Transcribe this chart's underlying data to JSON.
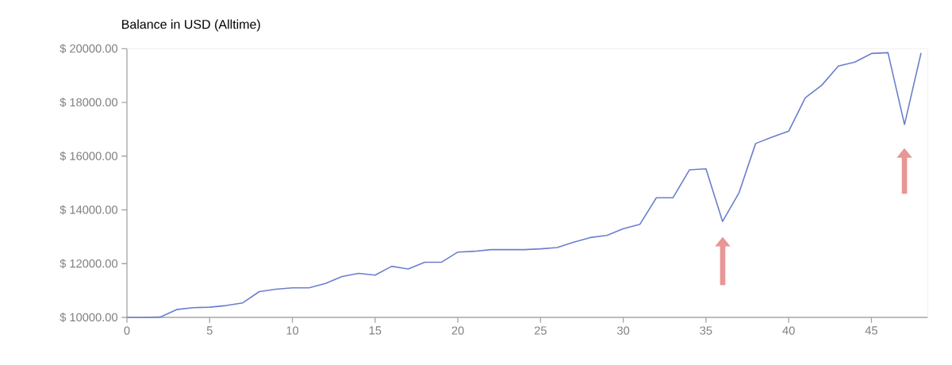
{
  "chart_data": {
    "type": "line",
    "title": "Balance in USD (Alltime)",
    "x": [
      0,
      1,
      2,
      3,
      4,
      5,
      6,
      7,
      8,
      9,
      10,
      11,
      12,
      13,
      14,
      15,
      16,
      17,
      18,
      19,
      20,
      21,
      22,
      23,
      24,
      25,
      26,
      27,
      28,
      29,
      30,
      31,
      32,
      33,
      34,
      35,
      36,
      37,
      38,
      39,
      40,
      41,
      42,
      43,
      44,
      45,
      46,
      47,
      48
    ],
    "series": [
      {
        "color": "#6b7fcc",
        "values": [
          10000,
          10000,
          10010,
          10290,
          10360,
          10380,
          10440,
          10540,
          10960,
          11050,
          11100,
          11100,
          11260,
          11520,
          11640,
          11570,
          11900,
          11800,
          12050,
          12050,
          12430,
          12460,
          12520,
          12520,
          12520,
          12550,
          12600,
          12800,
          12970,
          13050,
          13300,
          13460,
          14450,
          14450,
          15490,
          15530,
          13570,
          14640,
          16470,
          16710,
          16930,
          18170,
          18640,
          19350,
          19500,
          19820,
          19850,
          17180,
          19840
        ]
      }
    ],
    "xlim": [
      0,
      48.4
    ],
    "ylim": [
      10000,
      20000
    ],
    "xticks": [
      0,
      5,
      10,
      15,
      20,
      25,
      30,
      35,
      40,
      45
    ],
    "yticks": [
      {
        "value": 10000,
        "label": "$ 10000.00"
      },
      {
        "value": 12000,
        "label": "$ 12000.00"
      },
      {
        "value": 14000,
        "label": "$ 14000.00"
      },
      {
        "value": 16000,
        "label": "$ 16000.00"
      },
      {
        "value": 18000,
        "label": "$ 18000.00"
      },
      {
        "value": 20000,
        "label": "$ 20000.00"
      }
    ],
    "grid": false,
    "marker": "none",
    "line_style": "solid"
  }
}
